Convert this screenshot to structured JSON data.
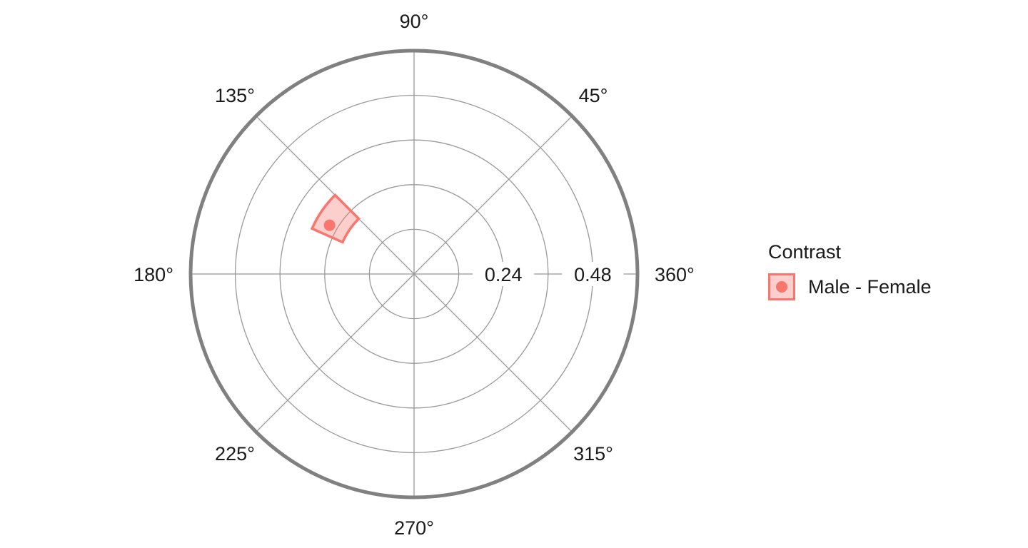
{
  "chart_data": {
    "type": "polar-scatter",
    "title": "",
    "angle_unit": "degrees",
    "angle_tick_labels": [
      "360°",
      "45°",
      "90°",
      "135°",
      "180°",
      "225°",
      "270°",
      "315°"
    ],
    "angle_ticks": [
      0,
      45,
      90,
      135,
      180,
      225,
      270,
      315
    ],
    "radial_ticks": [
      0.24,
      0.48
    ],
    "radial_tick_labels": [
      "0.24",
      "0.48"
    ],
    "radial_gridlines": [
      0.12,
      0.24,
      0.36,
      0.48,
      0.6
    ],
    "rlim": [
      0,
      0.6
    ],
    "grid": true,
    "legend_placement": "right",
    "legend_title": "Contrast",
    "series": [
      {
        "name": "Male - Female",
        "color": "#f8766d",
        "points": [
          {
            "angle": 150,
            "radius": 0.262,
            "angle_ci": [
              135,
              156
            ],
            "radius_ci": [
              0.21,
              0.3
            ]
          }
        ]
      }
    ]
  }
}
